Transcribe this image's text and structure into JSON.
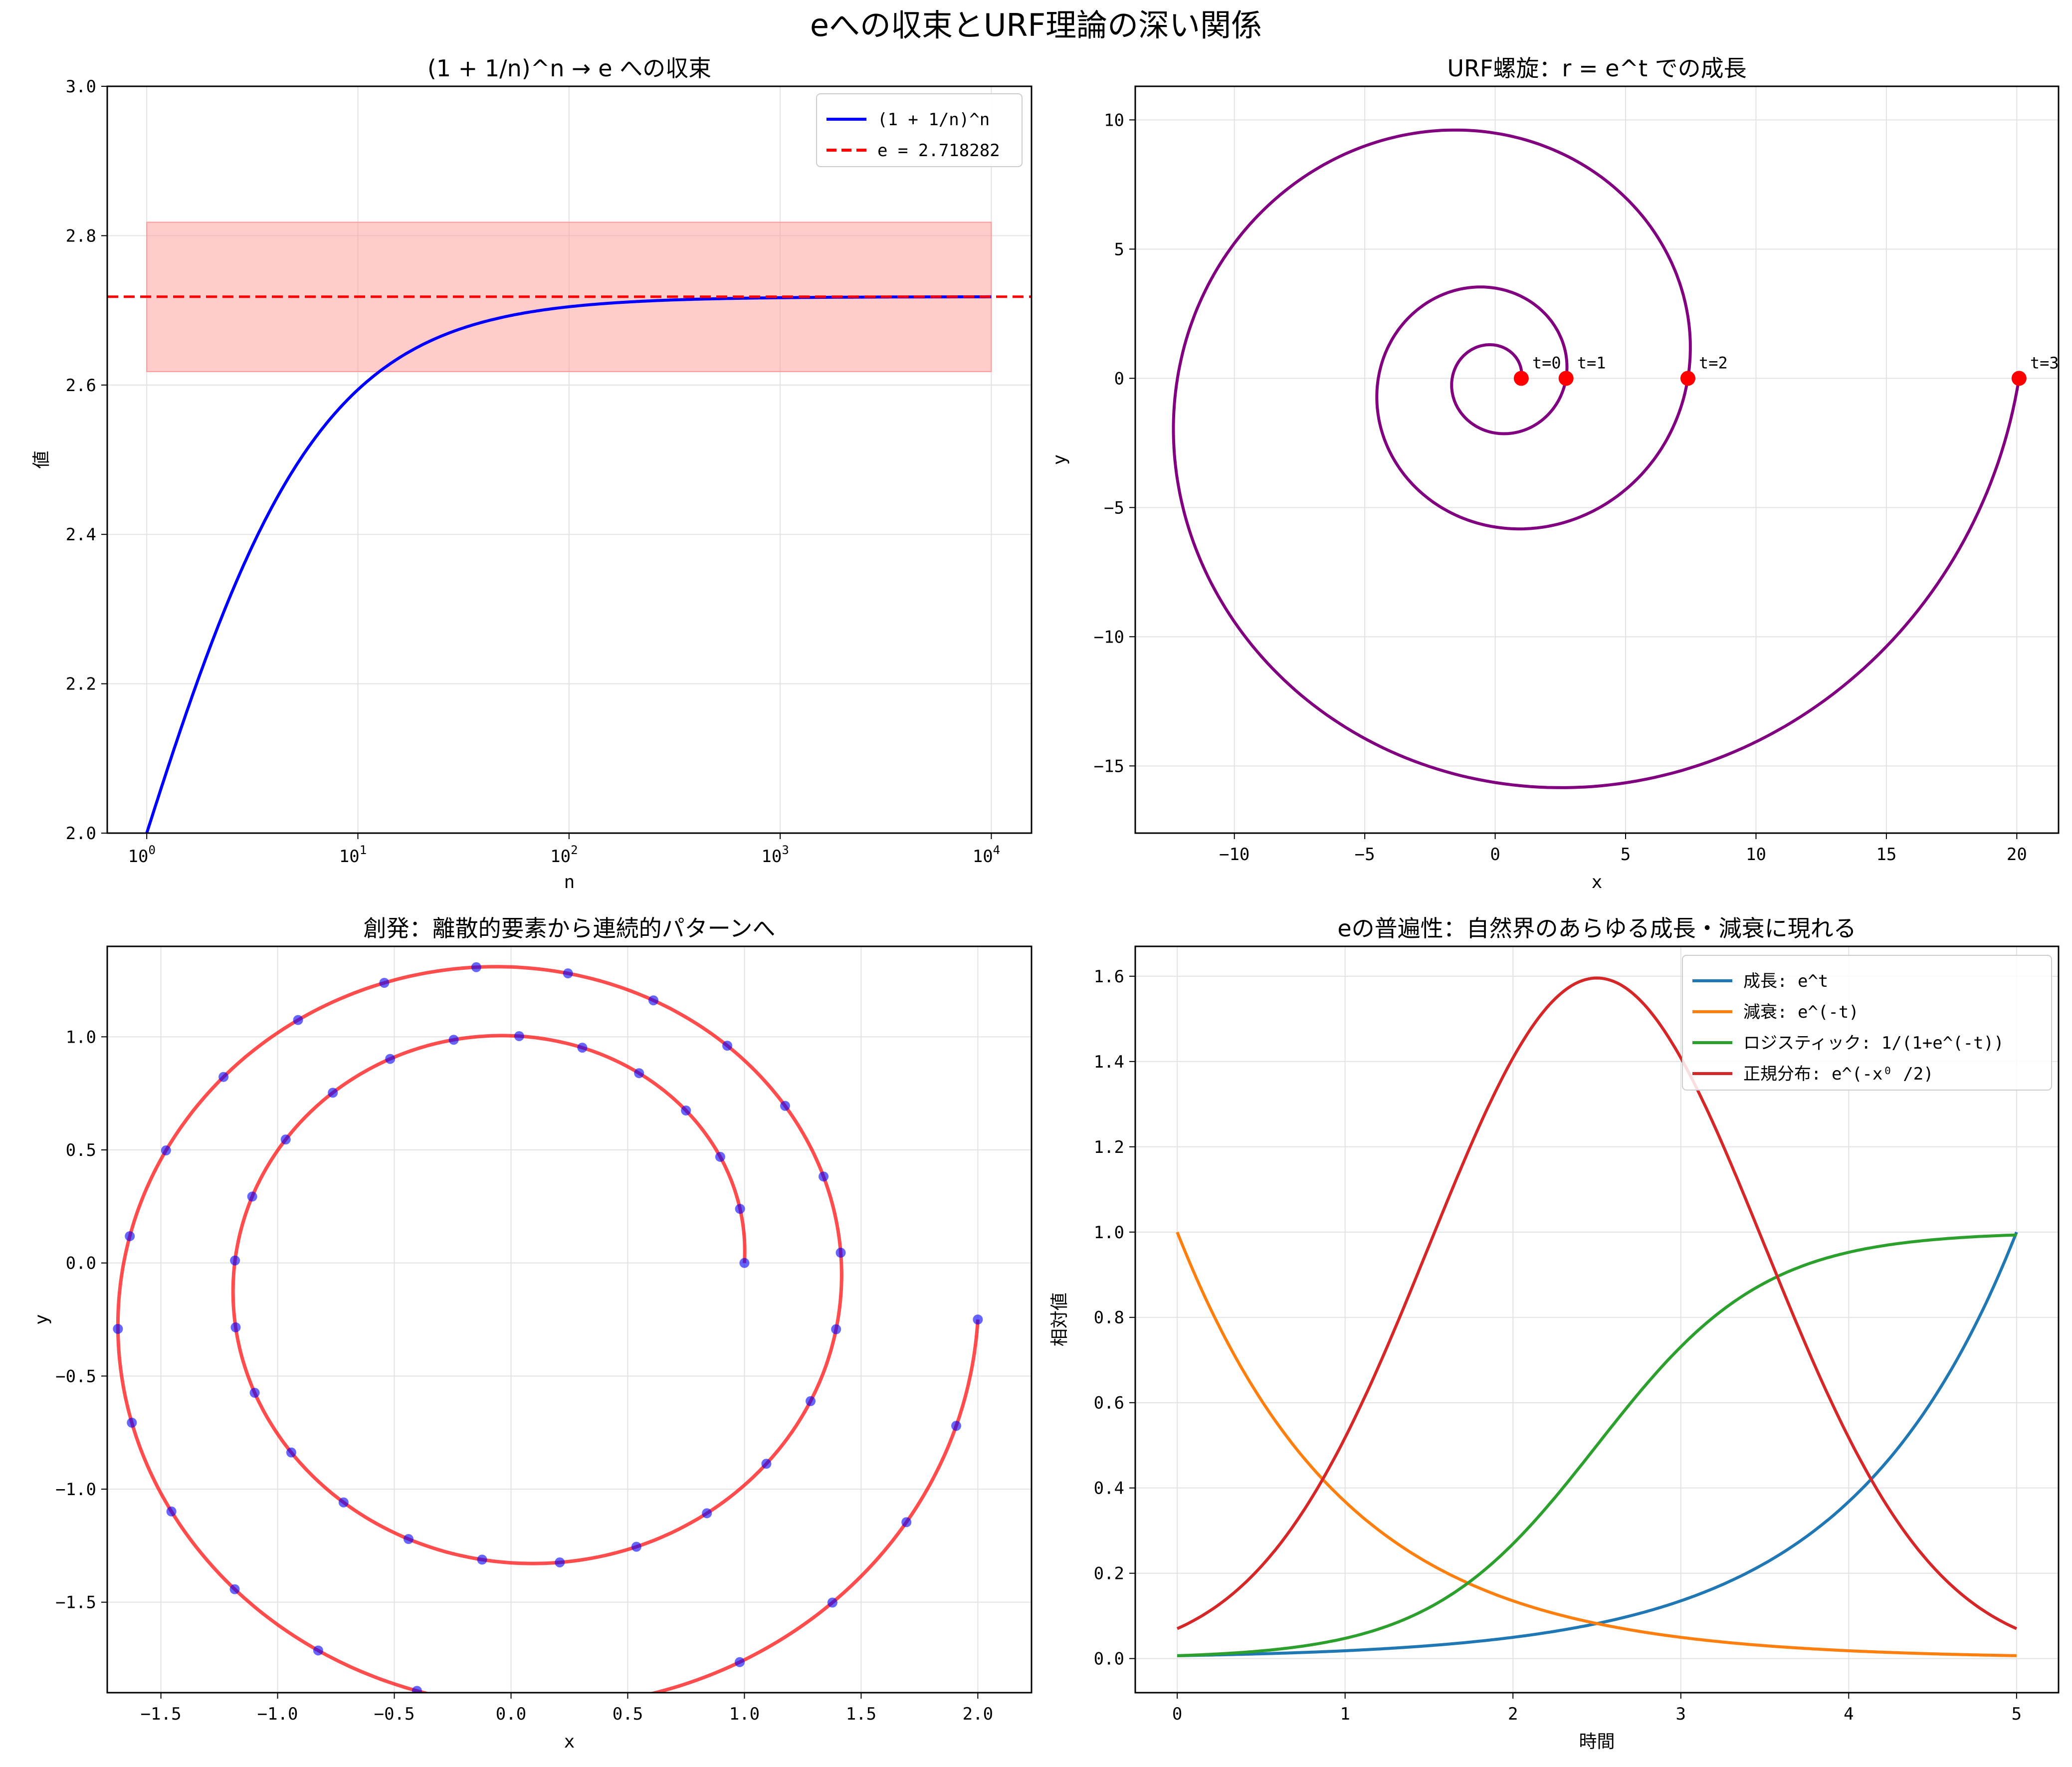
{
  "figure": {
    "suptitle": "eへの収束とURF理論の深い関係"
  },
  "chart_data": [
    {
      "type": "line",
      "title": "(1 + 1/n)^n → e への収束",
      "xlabel": "n",
      "ylabel": "値",
      "xscale": "log",
      "xlim": [
        0.65,
        15500
      ],
      "ylim": [
        2.0,
        3.0
      ],
      "xticks": [
        1,
        10,
        100,
        1000,
        10000
      ],
      "xtick_labels": [
        [
          "10",
          "0"
        ],
        [
          "10",
          "1"
        ],
        [
          "10",
          "2"
        ],
        [
          "10",
          "3"
        ],
        [
          "10",
          "4"
        ]
      ],
      "yticks": [
        "2.0",
        "2.2",
        "2.4",
        "2.6",
        "2.8",
        "3.0"
      ],
      "grid": true,
      "legend_position": "upper right",
      "series": [
        {
          "name": "(1 + 1/n)^n",
          "color": "#0000ff",
          "style": "solid",
          "x": [
            1,
            1.5,
            2,
            3,
            5,
            7,
            10,
            15,
            20,
            30,
            50,
            100,
            200,
            500,
            1000,
            2000,
            5000,
            10000
          ],
          "y": [
            2.0,
            2.1,
            2.25,
            2.37,
            2.488,
            2.546,
            2.594,
            2.632,
            2.653,
            2.674,
            2.692,
            2.705,
            2.712,
            2.716,
            2.717,
            2.718,
            2.718,
            2.718
          ]
        },
        {
          "name": "e = 2.718282",
          "color": "#ff0000",
          "style": "dashed",
          "y": 2.718282
        }
      ],
      "band": {
        "x": [
          1,
          10000
        ],
        "y": [
          2.618,
          2.818
        ],
        "color": "#ff9999"
      }
    },
    {
      "type": "line",
      "title": "URF螺旋：r = e^t での成長",
      "xlabel": "x",
      "ylabel": "y",
      "xlim": [
        -13.8,
        21.6
      ],
      "ylim": [
        -17.6,
        11.3
      ],
      "xticks": [
        -10,
        -5,
        0,
        5,
        10,
        15,
        20
      ],
      "yticks": [
        -15,
        -10,
        -5,
        0,
        5,
        10
      ],
      "grid": true,
      "series": [
        {
          "name": "",
          "color": "#800080",
          "curve": "r = e^t, theta = 2*pi*t, t in [0,3]"
        }
      ],
      "points": [
        {
          "label": "t=0",
          "x": 1.0,
          "y": 0
        },
        {
          "label": "t=1",
          "x": 2.718,
          "y": 0
        },
        {
          "label": "t=2",
          "x": 7.389,
          "y": 0
        },
        {
          "label": "t=3",
          "x": 20.086,
          "y": 0
        }
      ],
      "points_color": "#ff0000"
    },
    {
      "type": "scatter",
      "title": "創発：離散的要素から連続的パターンへ",
      "xlabel": "x",
      "ylabel": "y",
      "xlim": [
        -1.73,
        2.23
      ],
      "ylim": [
        -1.9,
        1.4
      ],
      "xticks": [
        -1.5,
        -1.0,
        -0.5,
        0.0,
        0.5,
        1.0,
        1.5,
        2.0
      ],
      "yticks": [
        -1.5,
        -1.0,
        -0.5,
        0.0,
        0.5,
        1.0
      ],
      "grid": true,
      "series": [
        {
          "name": "",
          "color": "#ff0000",
          "curve": "r = e^(0.25*theta), theta in [0, 4*pi]",
          "role": "continuous line"
        },
        {
          "name": "",
          "color": "#0000ff",
          "n_points": 50,
          "role": "discrete points"
        }
      ]
    },
    {
      "type": "line",
      "title": "eの普遍性：自然界のあらゆる成長・減衰に現れる",
      "xlabel": "時間",
      "ylabel": "相対値",
      "xlim": [
        -0.25,
        5.25
      ],
      "ylim": [
        -0.08,
        1.67
      ],
      "xticks": [
        0,
        1,
        2,
        3,
        4,
        5
      ],
      "yticks": [
        "0.0",
        "0.2",
        "0.4",
        "0.6",
        "0.8",
        "1.0",
        "1.2",
        "1.4",
        "1.6"
      ],
      "grid": true,
      "legend_position": "upper right",
      "series": [
        {
          "name": "成長: e^t",
          "color": "#1f77b4",
          "x": [
            0,
            1,
            2,
            3,
            4,
            5
          ],
          "y": [
            0.0067,
            0.0183,
            0.0498,
            0.1353,
            0.3679,
            1.0
          ]
        },
        {
          "name": "減衰: e^(-t)",
          "color": "#ff7f0e",
          "x": [
            0,
            1,
            2,
            3,
            4,
            5
          ],
          "y": [
            1.0,
            0.3679,
            0.1353,
            0.0498,
            0.0183,
            0.0067
          ]
        },
        {
          "name": "ロジスティック: 1/(1+e^(-t))",
          "color": "#2ca02c",
          "x": [
            0,
            1,
            2,
            3,
            4,
            5
          ],
          "y": [
            0.0067,
            0.0474,
            0.2689,
            0.7311,
            0.9526,
            0.9933
          ]
        },
        {
          "name": "正規分布: e^(-x⁰ /2)",
          "color": "#d62728",
          "x": [
            0,
            1,
            2,
            3,
            4,
            5
          ],
          "y": [
            0.0694,
            0.5219,
            1.4195,
            1.4195,
            0.5219,
            0.0694
          ],
          "peak": {
            "x": 2.5,
            "y": 1.596
          }
        }
      ]
    }
  ]
}
